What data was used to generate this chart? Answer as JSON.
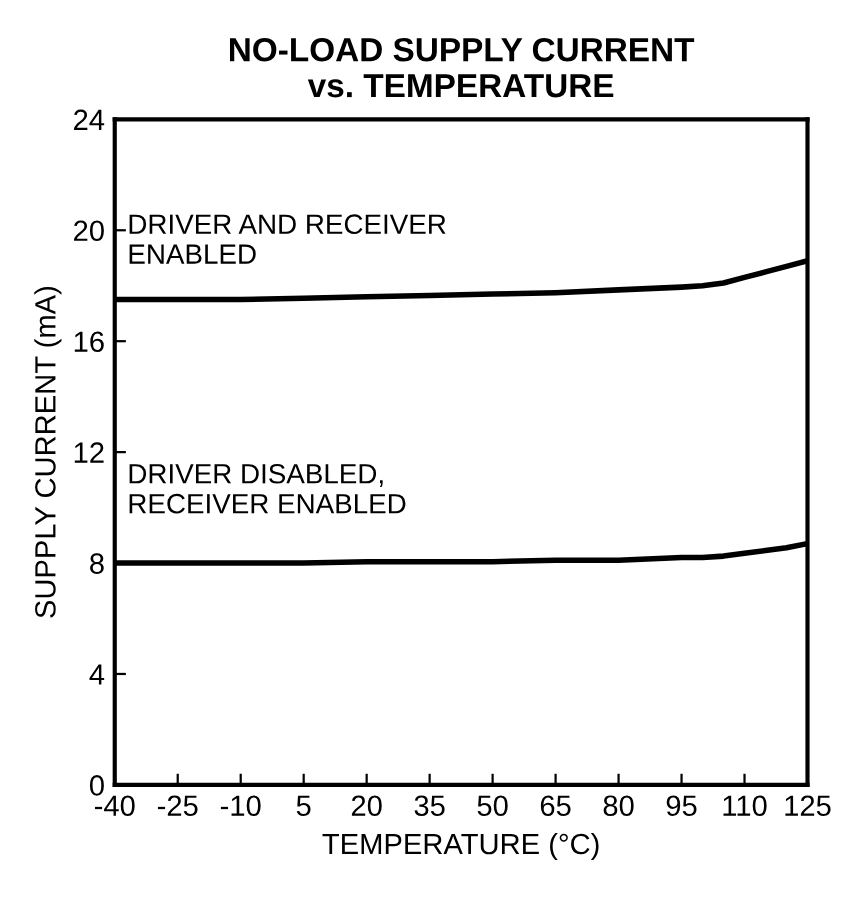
{
  "chart_data": {
    "type": "line",
    "title": "NO-LOAD SUPPLY CURRENT\nvs. TEMPERATURE",
    "xlabel": "TEMPERATURE (°C)",
    "ylabel": "SUPPLY CURRENT (mA)",
    "x": [
      -40,
      -25,
      -10,
      5,
      20,
      35,
      50,
      65,
      80,
      95,
      100,
      105,
      110,
      115,
      120,
      125
    ],
    "series": [
      {
        "name": "DRIVER AND RECEIVER\nENABLED",
        "color": "#000000",
        "values": [
          17.5,
          17.5,
          17.5,
          17.55,
          17.6,
          17.65,
          17.7,
          17.75,
          17.85,
          17.95,
          18.0,
          18.1,
          18.3,
          18.5,
          18.7,
          18.9
        ]
      },
      {
        "name": "DRIVER DISABLED,\nRECEIVER ENABLED",
        "color": "#000000",
        "values": [
          8.0,
          8.0,
          8.0,
          8.0,
          8.05,
          8.05,
          8.05,
          8.1,
          8.1,
          8.2,
          8.2,
          8.25,
          8.35,
          8.45,
          8.55,
          8.7
        ]
      }
    ],
    "xlim": [
      -40,
      125
    ],
    "xticks": [
      -40,
      -25,
      -10,
      5,
      20,
      35,
      50,
      65,
      80,
      95,
      110,
      125
    ],
    "ylim": [
      0,
      24
    ],
    "yticks": [
      0,
      4,
      8,
      12,
      16,
      20,
      24
    ],
    "grid": false,
    "legend": false,
    "line_style": "solid",
    "marker": "none"
  }
}
